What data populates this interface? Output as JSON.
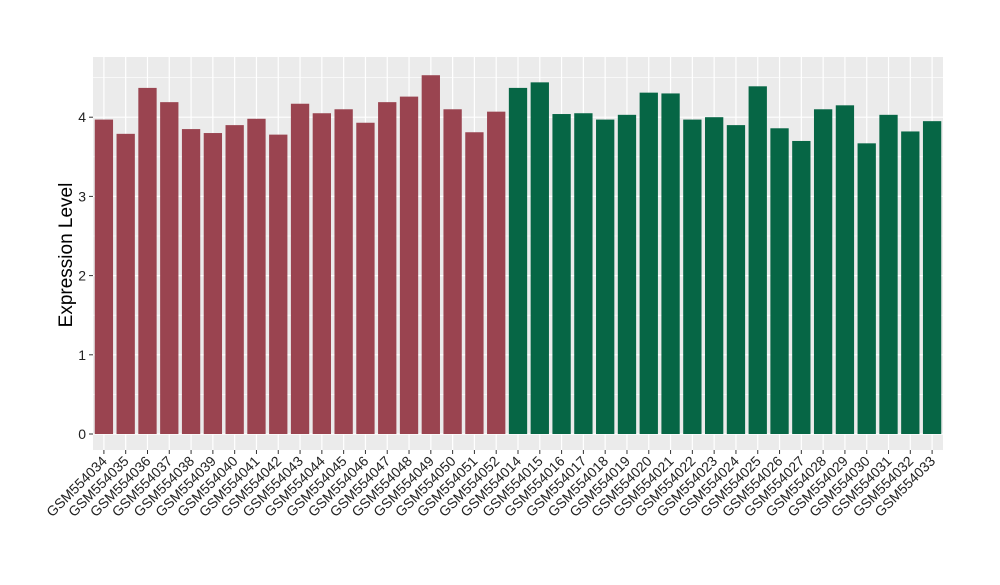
{
  "chart_data": {
    "type": "bar",
    "title": "",
    "xlabel": "",
    "ylabel": "Expression Level",
    "ylim": [
      0,
      4.6
    ],
    "yticks": [
      "0",
      "1",
      "2",
      "3",
      "4"
    ],
    "grid": true,
    "legend": "none",
    "colors": {
      "group1": "#9a4450",
      "group2": "#066645",
      "panel": "#ebebeb",
      "grid": "#ffffff"
    },
    "categories": [
      "GSM554034",
      "GSM554035",
      "GSM554036",
      "GSM554037",
      "GSM554038",
      "GSM554039",
      "GSM554040",
      "GSM554041",
      "GSM554042",
      "GSM554043",
      "GSM554044",
      "GSM554045",
      "GSM554046",
      "GSM554047",
      "GSM554048",
      "GSM554049",
      "GSM554050",
      "GSM554051",
      "GSM554052",
      "GSM554014",
      "GSM554015",
      "GSM554016",
      "GSM554017",
      "GSM554018",
      "GSM554019",
      "GSM554020",
      "GSM554021",
      "GSM554022",
      "GSM554023",
      "GSM554024",
      "GSM554025",
      "GSM554026",
      "GSM554027",
      "GSM554028",
      "GSM554029",
      "GSM554030",
      "GSM554031",
      "GSM554032",
      "GSM554033"
    ],
    "values": [
      3.97,
      3.79,
      4.37,
      4.19,
      3.85,
      3.8,
      3.9,
      3.98,
      3.78,
      4.17,
      4.05,
      4.1,
      3.93,
      4.19,
      4.26,
      4.53,
      4.1,
      3.81,
      4.07,
      4.37,
      4.44,
      4.04,
      4.05,
      3.97,
      4.03,
      4.31,
      4.3,
      3.97,
      4.0,
      3.9,
      4.39,
      3.86,
      3.7,
      4.1,
      4.15,
      3.67,
      4.03,
      3.82,
      3.95
    ],
    "groups": [
      1,
      1,
      1,
      1,
      1,
      1,
      1,
      1,
      1,
      1,
      1,
      1,
      1,
      1,
      1,
      1,
      1,
      1,
      1,
      2,
      2,
      2,
      2,
      2,
      2,
      2,
      2,
      2,
      2,
      2,
      2,
      2,
      2,
      2,
      2,
      2,
      2,
      2,
      2
    ]
  }
}
